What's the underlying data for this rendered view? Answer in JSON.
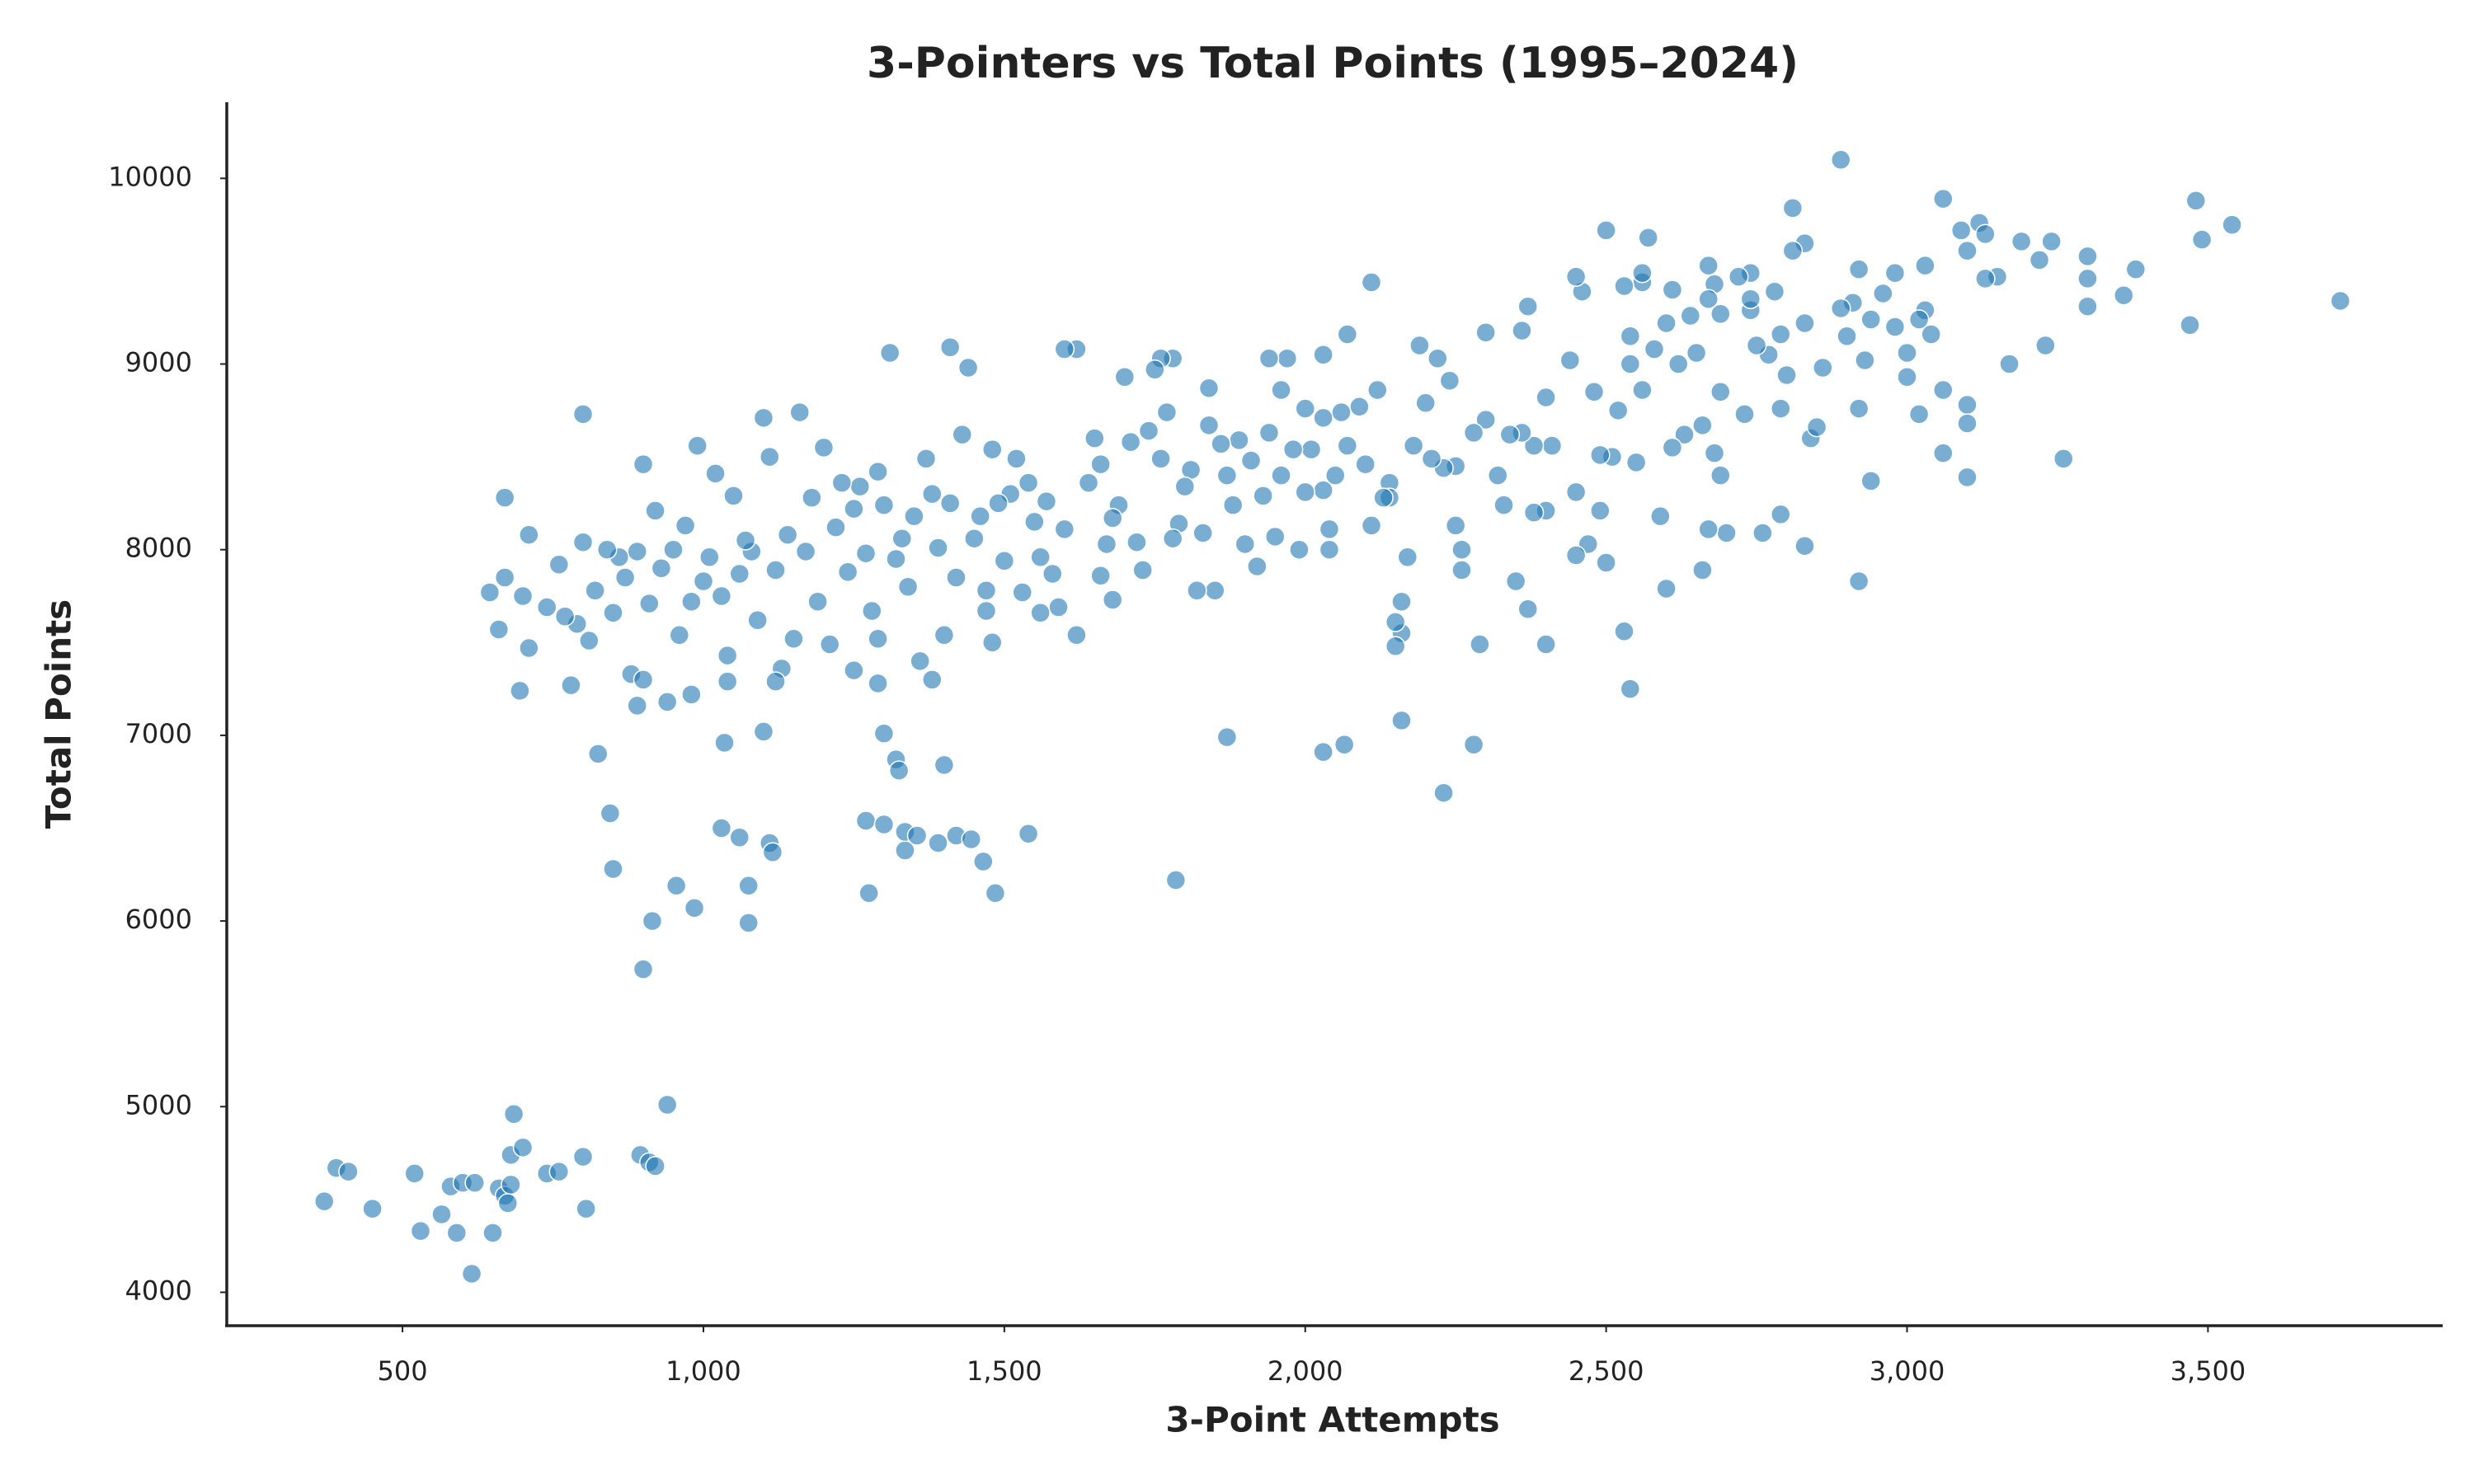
{
  "chart_data": {
    "type": "scatter",
    "title": "3-Pointers vs Total Points (1995–2024)",
    "x_label": "3-Point Attempts",
    "y_label": "Total Points",
    "color": "#1f77b4",
    "xlim": [
      208,
      3890
    ],
    "ylim": [
      3820,
      10410
    ],
    "xticks": [
      500,
      {
        "value": 1000,
        "label": "1,000"
      },
      {
        "value": 1500,
        "label": "1,500"
      },
      {
        "value": 2000,
        "label": "2,000"
      },
      {
        "value": 2500,
        "label": "2,500"
      },
      {
        "value": 3000,
        "label": "3,000"
      },
      {
        "value": 3500,
        "label": "3,500"
      }
    ],
    "yticks": [
      4000,
      5000,
      6000,
      7000,
      8000,
      9000,
      10000
    ],
    "grid": false,
    "x": [
      370,
      390,
      410,
      450,
      520,
      530,
      565,
      580,
      590,
      600,
      620,
      615,
      650,
      660,
      670,
      675,
      680,
      680,
      685,
      700,
      740,
      760,
      800,
      805,
      895,
      910,
      920,
      940,
      900,
      915,
      955,
      985,
      1075,
      1075,
      850,
      845,
      825,
      1030,
      1060,
      1110,
      1115,
      1100,
      1035,
      1270,
      1300,
      1335,
      1335,
      1355,
      1390,
      1420,
      1445,
      1465,
      1485,
      1540,
      1275,
      1300,
      1320,
      1325,
      1400,
      1785,
      1870,
      2030,
      2065,
      2160,
      2230,
      2280,
      2540,
      2530,
      2110,
      2890,
      3060,
      3480,
      3540,
      3720,
      3490,
      3470,
      3260,
      3300,
      3300,
      3300,
      3380,
      3360,
      3230,
      3190,
      3220,
      3240,
      3170,
      3150,
      3120,
      3130,
      3090,
      3100,
      3130,
      3100,
      3100,
      3100,
      3060,
      3060,
      3030,
      3030,
      3040,
      3020,
      3020,
      3000,
      3000,
      2980,
      2980,
      2960,
      2940,
      2930,
      2920,
      2920,
      2910,
      2890,
      2900,
      2940,
      2920,
      2830,
      2840,
      2850,
      2860,
      2830,
      2830,
      2810,
      2810,
      2800,
      2790,
      2790,
      2790,
      2770,
      2780,
      2760,
      2750,
      2740,
      2740,
      2740,
      2720,
      2730,
      2700,
      2690,
      2690,
      2690,
      2680,
      2670,
      2680,
      2670,
      2670,
      2660,
      2660,
      2650,
      2640,
      2630,
      2620,
      2610,
      2600,
      2600,
      2610,
      2590,
      2580,
      2570,
      2560,
      2560,
      2560,
      2550,
      2540,
      2540,
      2530,
      2520,
      2510,
      2500,
      2500,
      2490,
      2490,
      2480,
      2470,
      2460,
      2450,
      2450,
      2450,
      2440,
      2410,
      2400,
      2400,
      2400,
      2380,
      2380,
      2370,
      2360,
      2360,
      2370,
      2350,
      2340,
      2330,
      2320,
      2300,
      2300,
      2290,
      2280,
      2260,
      2260,
      2250,
      2250,
      2240,
      2230,
      2220,
      2210,
      2200,
      2190,
      2180,
      2170,
      2160,
      2160,
      2150,
      2150,
      2140,
      2140,
      2130,
      2120,
      2110,
      2100,
      2090,
      2070,
      2070,
      2060,
      2050,
      2040,
      2040,
      2030,
      2030,
      2030,
      2010,
      2000,
      2000,
      1990,
      1980,
      1970,
      1960,
      1960,
      1950,
      1940,
      1940,
      1930,
      1920,
      1910,
      1900,
      1890,
      1880,
      1870,
      1860,
      1850,
      1840,
      1840,
      1830,
      1820,
      1810,
      1800,
      1790,
      1780,
      1780,
      1770,
      1760,
      1760,
      1750,
      1740,
      1730,
      1720,
      1710,
      1700,
      1690,
      1680,
      1670,
      1660,
      1660,
      1650,
      1640,
      1620,
      1600,
      1600,
      1590,
      1580,
      1570,
      1560,
      1550,
      1540,
      1530,
      1520,
      1510,
      1500,
      1490,
      1480,
      1470,
      1460,
      1450,
      1440,
      1430,
      1420,
      1410,
      1410,
      1400,
      1390,
      1380,
      1370,
      1360,
      1350,
      1340,
      1330,
      1320,
      1310,
      1300,
      1290,
      1280,
      1270,
      1260,
      1250,
      1240,
      1230,
      1220,
      1210,
      1200,
      1190,
      1180,
      1170,
      1160,
      1150,
      1140,
      1130,
      1120,
      1110,
      1100,
      1090,
      1080,
      1070,
      1060,
      1050,
      1040,
      1030,
      1020,
      1010,
      1000,
      990,
      980,
      970,
      960,
      950,
      940,
      930,
      920,
      910,
      900,
      890,
      880,
      870,
      860,
      850,
      840,
      820,
      810,
      800,
      800,
      790,
      780,
      770,
      760,
      740,
      710,
      710,
      700,
      695,
      670,
      670,
      660,
      645,
      890,
      900,
      980,
      1040,
      1120,
      1250,
      1290,
      1380,
      1480,
      1560,
      1620,
      1680,
      1470,
      1290
    ],
    "values": [
      4490,
      4670,
      4650,
      4450,
      4640,
      4330,
      4420,
      4570,
      4320,
      4590,
      4590,
      4100,
      4320,
      4560,
      4520,
      4480,
      4580,
      4740,
      4960,
      4780,
      4640,
      4650,
      4730,
      4450,
      4740,
      4700,
      4680,
      5010,
      5740,
      6000,
      6190,
      6070,
      5990,
      6190,
      6280,
      6580,
      6900,
      6500,
      6450,
      6420,
      6370,
      7020,
      6960,
      6540,
      6520,
      6380,
      6480,
      6460,
      6420,
      6460,
      6440,
      6320,
      6150,
      6470,
      6150,
      7010,
      6870,
      6810,
      6840,
      6220,
      6990,
      6910,
      6950,
      7080,
      6690,
      6950,
      7250,
      7560,
      9440,
      10100,
      9890,
      9880,
      9750,
      9340,
      9670,
      9210,
      8490,
      9580,
      9310,
      9460,
      9510,
      9370,
      9100,
      9660,
      9560,
      9660,
      9000,
      9470,
      9760,
      9700,
      9720,
      9610,
      9460,
      8780,
      8680,
      8390,
      8520,
      8860,
      9290,
      9530,
      9160,
      9240,
      8730,
      8930,
      9060,
      9200,
      9490,
      9380,
      9240,
      9020,
      8760,
      9510,
      9330,
      9300,
      9150,
      8370,
      7830,
      8020,
      8600,
      8660,
      8980,
      9220,
      9650,
      9610,
      9840,
      8940,
      9160,
      8760,
      8190,
      9050,
      9390,
      8090,
      9100,
      9290,
      9490,
      9350,
      9470,
      8730,
      8090,
      8400,
      8850,
      9270,
      9430,
      9530,
      8520,
      9350,
      8110,
      7890,
      8670,
      9060,
      9260,
      8620,
      9000,
      9400,
      9220,
      7790,
      8550,
      8180,
      9080,
      9680,
      9440,
      9490,
      8860,
      8470,
      9150,
      9000,
      9420,
      8750,
      8500,
      9720,
      7930,
      8510,
      8210,
      8850,
      8030,
      9390,
      9470,
      8310,
      7970,
      9020,
      8560,
      8210,
      8820,
      7490,
      8560,
      8200,
      9310,
      9180,
      8630,
      7680,
      7830,
      8620,
      8240,
      8400,
      9170,
      8700,
      7490,
      8630,
      8000,
      7890,
      8130,
      8450,
      8910,
      8440,
      9030,
      8490,
      8790,
      9100,
      8560,
      7960,
      7720,
      7550,
      7610,
      7480,
      8360,
      8280,
      8280,
      8860,
      8130,
      8460,
      8770,
      9160,
      8560,
      8740,
      8400,
      8000,
      8110,
      9050,
      8710,
      8320,
      8540,
      8310,
      8760,
      8000,
      8540,
      9030,
      8860,
      8400,
      8070,
      9030,
      8630,
      8290,
      7910,
      8480,
      8030,
      8590,
      8240,
      8400,
      8570,
      7780,
      8870,
      8670,
      8090,
      7780,
      8430,
      8340,
      8140,
      9030,
      8060,
      8740,
      8490,
      9030,
      8970,
      8640,
      7890,
      8040,
      8580,
      8930,
      8240,
      8170,
      8030,
      7860,
      8460,
      8600,
      8360,
      9080,
      9080,
      8110,
      7690,
      7870,
      8260,
      7960,
      8150,
      8360,
      7770,
      8490,
      8300,
      7940,
      8250,
      8540,
      7780,
      8180,
      8060,
      8980,
      8620,
      7850,
      9090,
      8250,
      7540,
      8010,
      8300,
      8490,
      7400,
      8180,
      7800,
      8060,
      7950,
      9060,
      8240,
      8420,
      7670,
      7980,
      8340,
      8220,
      7880,
      8360,
      8120,
      7490,
      8550,
      7720,
      8280,
      7990,
      8740,
      7520,
      8080,
      7360,
      7890,
      8500,
      8710,
      7620,
      7990,
      8050,
      7870,
      8290,
      7430,
      7750,
      8410,
      7960,
      7830,
      8560,
      7720,
      8130,
      7540,
      8000,
      7180,
      7900,
      8210,
      7710,
      8460,
      7990,
      7330,
      7850,
      7960,
      7660,
      8000,
      7780,
      7510,
      8730,
      8040,
      7600,
      7270,
      7640,
      7920,
      7690,
      8080,
      7470,
      7750,
      7240,
      8280,
      7850,
      7570,
      7770,
      7160,
      7300,
      7220,
      7290,
      7290,
      7350,
      7280,
      7300,
      7500,
      7660,
      7540,
      7730,
      7670,
      7520
    ]
  }
}
